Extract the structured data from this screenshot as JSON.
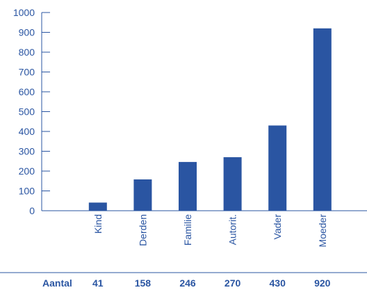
{
  "chart_data": {
    "type": "bar",
    "categories": [
      "Kind",
      "Derden",
      "Familie",
      "Autorit.",
      "Vader",
      "Moeder"
    ],
    "values": [
      41,
      158,
      246,
      270,
      430,
      920
    ],
    "ylim": [
      0,
      1000
    ],
    "yticks": [
      0,
      100,
      200,
      300,
      400,
      500,
      600,
      700,
      800,
      900,
      1000
    ],
    "grid": false,
    "table_row_label": "Aantal",
    "table_values": [
      "41",
      "158",
      "246",
      "270",
      "430",
      "920"
    ],
    "colors": {
      "bar": "#2a55a2",
      "axis": "#2a55a2",
      "text": "#2a55a2"
    }
  }
}
